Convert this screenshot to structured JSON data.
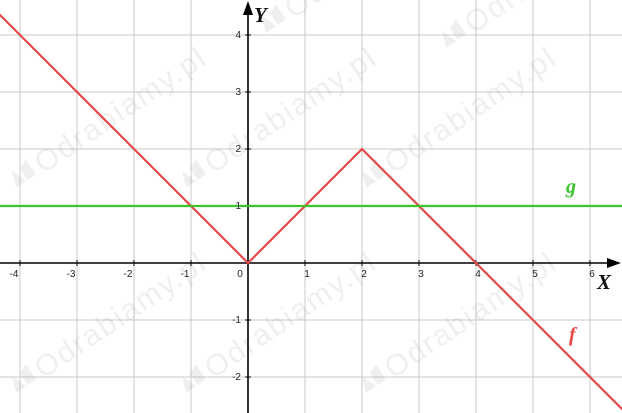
{
  "chart_data": {
    "type": "line",
    "xlim": [
      -4.4,
      6.6
    ],
    "ylim": [
      -2.6,
      4.6
    ],
    "grid": true,
    "xlabel": "X",
    "ylabel": "Y",
    "x_ticks": [
      -4,
      -3,
      -2,
      -1,
      0,
      1,
      2,
      3,
      4,
      5,
      6
    ],
    "y_ticks": [
      -2,
      -1,
      1,
      2,
      3,
      4
    ],
    "series": [
      {
        "name": "f",
        "color": "#e8474a",
        "x": [
          -4.4,
          0,
          2,
          6.6
        ],
        "y": [
          4.4,
          0,
          2,
          -2.6
        ]
      },
      {
        "name": "g",
        "color": "#3cc42f",
        "x": [
          -4.4,
          6.6
        ],
        "y": [
          1,
          1
        ]
      }
    ]
  },
  "watermark": "Odrabiamy.pl",
  "colors": {
    "grid": "#c8c8c8",
    "axis": "#000000",
    "background": "#ffffff"
  }
}
